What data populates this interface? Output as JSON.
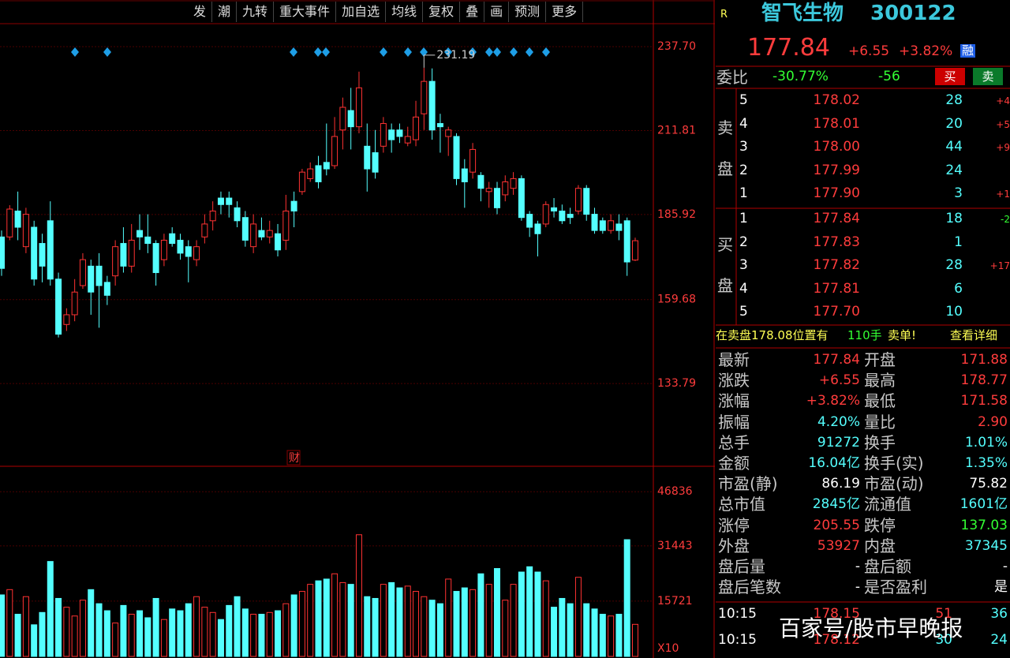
{
  "toolbar": [
    "发",
    "潮",
    "九转",
    "重大事件",
    "加自选",
    "均线",
    "复权",
    "叠",
    "画",
    "预测",
    "更多"
  ],
  "chart_data": {
    "type": "candlestick",
    "up_color": "#ff3232",
    "down_color": "#54ffff",
    "open": [
      179,
      179,
      187,
      176,
      182,
      177,
      184,
      166,
      152,
      155,
      164,
      170,
      170,
      165,
      167,
      177,
      170,
      181,
      179,
      177,
      172,
      180,
      178,
      176,
      172,
      179,
      184,
      191,
      191,
      188,
      185,
      176,
      181,
      179,
      180,
      178,
      190,
      193,
      197,
      201,
      202,
      201,
      212,
      218,
      213,
      207,
      205,
      207,
      212,
      212,
      208,
      209,
      217,
      227,
      214,
      210,
      210,
      200,
      199,
      198,
      193,
      194,
      192,
      194,
      197,
      186,
      183,
      183,
      188,
      187,
      186,
      187,
      194,
      186,
      184,
      181,
      183,
      184,
      171.88
    ],
    "high": [
      181,
      188.8,
      193,
      188,
      184,
      180,
      190,
      168,
      157,
      166,
      174,
      172,
      174,
      167,
      178,
      182,
      183,
      186,
      186,
      178,
      180,
      182,
      180,
      178,
      178,
      186,
      190,
      193,
      193,
      190,
      187,
      186,
      185,
      184,
      183,
      192,
      193,
      200,
      202,
      204,
      214,
      216,
      222,
      225,
      230,
      214,
      212,
      216,
      214,
      214,
      213,
      221,
      231.19,
      231,
      217,
      213,
      211,
      203,
      208,
      199,
      196,
      196,
      198,
      199,
      198,
      187,
      184,
      190,
      191,
      189,
      188,
      195,
      195,
      188,
      185,
      186,
      186,
      185,
      178.77
    ],
    "low": [
      167,
      178,
      178,
      174,
      164,
      165,
      164,
      148,
      150,
      153,
      163,
      155,
      151,
      158,
      164,
      168,
      168,
      175,
      174,
      164,
      170,
      176,
      172,
      165,
      170,
      177,
      181,
      186,
      185,
      182,
      176,
      174,
      178,
      177,
      173,
      175,
      182,
      192,
      196,
      194,
      198,
      200,
      206,
      206,
      211,
      193,
      197,
      205,
      205,
      208,
      207,
      207,
      212,
      209,
      205,
      204,
      195,
      188,
      197,
      190,
      188,
      186,
      190,
      192,
      184,
      179,
      173,
      182,
      185,
      183,
      183,
      186,
      184,
      180,
      180,
      180,
      178,
      167,
      171.58
    ],
    "close": [
      169.3,
      187.6,
      182,
      186,
      166,
      170,
      166,
      149,
      155,
      162,
      172,
      162,
      164,
      161,
      176,
      170,
      178,
      179,
      177,
      168,
      178,
      177,
      174,
      173,
      176,
      183,
      187,
      189,
      189,
      184,
      178,
      183,
      179,
      181,
      175,
      187,
      187,
      199,
      200,
      196,
      200,
      210,
      219,
      213,
      225,
      200,
      199,
      214,
      209,
      210,
      210,
      216,
      227,
      212,
      213,
      212,
      197,
      196,
      206,
      194,
      194,
      188,
      196,
      197,
      185,
      182,
      180,
      189,
      187,
      184,
      185,
      194,
      186,
      181,
      181,
      184,
      181,
      171.29,
      177.84
    ],
    "ylim": [
      108.5,
      244.8
    ],
    "yticks": [
      {
        "value": 237.7,
        "label": "237.70"
      },
      211.81,
      185.92,
      159.68,
      133.79
    ],
    "annotations": [
      "231.19"
    ],
    "marker": "财",
    "volume": {
      "values": [
        17500,
        19000,
        12000,
        17000,
        9000,
        12500,
        27000,
        16500,
        14000,
        11500,
        16000,
        19000,
        15000,
        13000,
        9500,
        14500,
        12000,
        13000,
        11000,
        16500,
        10500,
        13500,
        13000,
        15000,
        17000,
        14000,
        12500,
        10500,
        14500,
        17000,
        13500,
        12000,
        12000,
        12500,
        13000,
        15000,
        17500,
        18500,
        20500,
        21500,
        22000,
        23500,
        21000,
        20500,
        34600,
        17000,
        16500,
        20500,
        21000,
        19500,
        20000,
        18500,
        17000,
        16000,
        15000,
        22000,
        18500,
        19500,
        19000,
        23500,
        20500,
        25000,
        16000,
        20500,
        24000,
        25500,
        24000,
        21500,
        14000,
        16500,
        15000,
        22500,
        15000,
        13500,
        12000,
        11500,
        12000,
        33200,
        9127
      ],
      "ylim": [
        0,
        52500
      ],
      "yticks": [
        46836,
        31443,
        15721
      ],
      "unit": "X10"
    }
  },
  "quote": {
    "flag": "R",
    "name": "智飞生物",
    "code": "300122",
    "price": "177.84",
    "change": "+6.55",
    "pct": "+3.82%",
    "tag": "融",
    "ratio_label": "委比",
    "ratio": "-30.77%",
    "diff": "-56",
    "buy": "买",
    "sell": "卖",
    "sell_label": [
      "卖",
      "盘"
    ],
    "buy_label": [
      "买",
      "盘"
    ],
    "sell_rows": [
      [
        "5",
        "178.02",
        "28",
        "+4"
      ],
      [
        "4",
        "178.01",
        "20",
        "+5"
      ],
      [
        "3",
        "178.00",
        "44",
        "+9"
      ],
      [
        "2",
        "177.99",
        "24"
      ],
      [
        "1",
        "177.90",
        "3",
        "+1"
      ]
    ],
    "buy_rows": [
      [
        "1",
        "177.84",
        "18",
        "-2"
      ],
      [
        "2",
        "177.83",
        "1"
      ],
      [
        "3",
        "177.82",
        "28",
        "+17"
      ],
      [
        "4",
        "177.81",
        "6"
      ],
      [
        "5",
        "177.70",
        "10"
      ]
    ],
    "notice": [
      "在卖盘178.08位置有",
      "110手",
      "卖单!",
      "查看详细"
    ],
    "stats": [
      [
        "最新",
        "177.84",
        "开盘",
        "171.88"
      ],
      [
        "涨跌",
        "+6.55",
        "最高",
        "178.77"
      ],
      [
        "涨幅",
        "+3.82%",
        "最低",
        "171.58"
      ],
      [
        "振幅",
        "4.20%",
        "量比",
        "2.90"
      ],
      [
        "总手",
        "91272",
        "换手",
        "1.01%"
      ],
      [
        "金额",
        "16.04亿",
        "换手(实)",
        "1.35%"
      ],
      [
        "市盈(静)",
        "86.19",
        "市盈(动)",
        "75.82"
      ],
      [
        "总市值",
        "2845亿",
        "流通值",
        "1601亿"
      ],
      [
        "涨停",
        "205.55",
        "跌停",
        "137.03"
      ],
      [
        "外盘",
        "53927",
        "内盘",
        "37345"
      ],
      [
        "盘后量",
        "-",
        "盘后额",
        "-"
      ],
      [
        "盘后笔数",
        "-",
        "是否盈利",
        "是"
      ]
    ],
    "ticks": [
      [
        "10:15",
        "178.15",
        "51",
        "36"
      ],
      [
        "10:15",
        "178.12",
        "30",
        "24"
      ]
    ],
    "watermark": "百家号/股市早晚报"
  }
}
